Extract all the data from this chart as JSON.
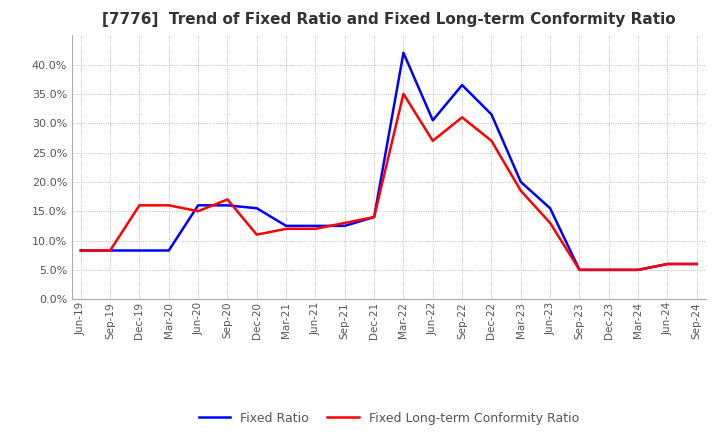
{
  "title": "[7776]  Trend of Fixed Ratio and Fixed Long-term Conformity Ratio",
  "title_fontsize": 11,
  "legend_labels": [
    "Fixed Ratio",
    "Fixed Long-term Conformity Ratio"
  ],
  "line_colors": [
    "#0000ff",
    "#ff0000"
  ],
  "ylim": [
    0.0,
    0.45
  ],
  "yticks": [
    0.0,
    0.05,
    0.1,
    0.15,
    0.2,
    0.25,
    0.3,
    0.35,
    0.4
  ],
  "dates": [
    "Jun-19",
    "Sep-19",
    "Dec-19",
    "Mar-20",
    "Jun-20",
    "Sep-20",
    "Dec-20",
    "Mar-21",
    "Jun-21",
    "Sep-21",
    "Dec-21",
    "Mar-22",
    "Jun-22",
    "Sep-22",
    "Dec-22",
    "Mar-23",
    "Jun-23",
    "Sep-23",
    "Dec-23",
    "Mar-24",
    "Jun-24",
    "Sep-24"
  ],
  "fixed_ratio": [
    0.083,
    0.083,
    0.083,
    0.083,
    0.16,
    0.16,
    0.155,
    0.125,
    0.125,
    0.125,
    0.14,
    0.42,
    0.305,
    0.365,
    0.315,
    0.2,
    0.155,
    0.05,
    0.05,
    0.05,
    0.06,
    0.06
  ],
  "fixed_lt_ratio": [
    0.083,
    0.083,
    0.16,
    0.16,
    0.15,
    0.17,
    0.11,
    0.12,
    0.12,
    0.13,
    0.14,
    0.35,
    0.27,
    0.31,
    0.27,
    0.185,
    0.13,
    0.05,
    0.05,
    0.05,
    0.06,
    0.06
  ],
  "background_color": "#ffffff",
  "grid_color": "#aaaaaa"
}
